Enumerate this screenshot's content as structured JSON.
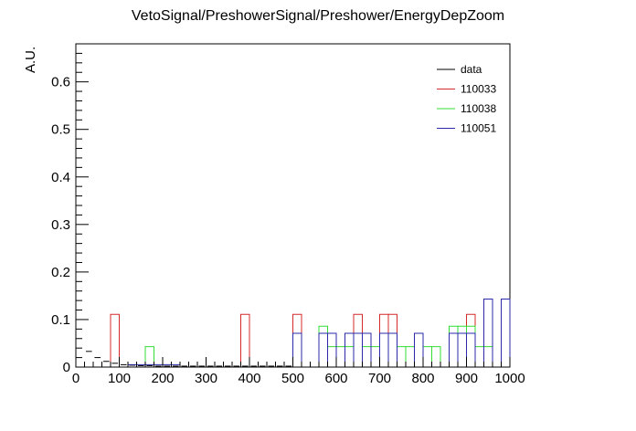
{
  "chart_data": {
    "type": "histogram",
    "title": "VetoSignal/PreshowerSignal/Preshower/EnergyDepZoom",
    "xlabel": "",
    "ylabel": "A.U.",
    "xlim": [
      0,
      1000
    ],
    "ylim": [
      0,
      0.68
    ],
    "x_ticks": [
      0,
      100,
      200,
      300,
      400,
      500,
      600,
      700,
      800,
      900,
      1000
    ],
    "x_tick_labels": [
      "0",
      "100",
      "200",
      "300",
      "400",
      "500",
      "600",
      "700",
      "800",
      "900",
      "1000"
    ],
    "y_ticks": [
      0,
      0.1,
      0.2,
      0.3,
      0.4,
      0.5,
      0.6
    ],
    "y_tick_labels": [
      "0",
      "0.1",
      "0.2",
      "0.3",
      "0.4",
      "0.5",
      "0.6"
    ],
    "grid": false,
    "legend_position": "top-right",
    "bin_width": 20,
    "series": [
      {
        "name": "data",
        "color": "#000000",
        "style": "markers",
        "bins": [
          {
            "x0": 20,
            "x1": 40,
            "y": 0.033
          },
          {
            "x0": 40,
            "x1": 60,
            "y": 0.02
          },
          {
            "x0": 60,
            "x1": 80,
            "y": 0.012
          },
          {
            "x0": 80,
            "x1": 100,
            "y": 0.008
          },
          {
            "x0": 100,
            "x1": 120,
            "y": 0.005
          },
          {
            "x0": 120,
            "x1": 140,
            "y": 0.004
          },
          {
            "x0": 140,
            "x1": 160,
            "y": 0.003
          },
          {
            "x0": 160,
            "x1": 180,
            "y": 0.003
          },
          {
            "x0": 180,
            "x1": 200,
            "y": 0.002
          },
          {
            "x0": 200,
            "x1": 220,
            "y": 0.002
          },
          {
            "x0": 220,
            "x1": 240,
            "y": 0.002
          },
          {
            "x0": 240,
            "x1": 260,
            "y": 0.002
          },
          {
            "x0": 260,
            "x1": 280,
            "y": 0.002
          },
          {
            "x0": 280,
            "x1": 300,
            "y": 0.002
          },
          {
            "x0": 300,
            "x1": 320,
            "y": 0.002
          },
          {
            "x0": 320,
            "x1": 340,
            "y": 0.002
          },
          {
            "x0": 340,
            "x1": 360,
            "y": 0.002
          },
          {
            "x0": 360,
            "x1": 380,
            "y": 0.002
          },
          {
            "x0": 380,
            "x1": 400,
            "y": 0.002
          },
          {
            "x0": 400,
            "x1": 420,
            "y": 0.002
          },
          {
            "x0": 420,
            "x1": 440,
            "y": 0.002
          },
          {
            "x0": 440,
            "x1": 460,
            "y": 0.002
          },
          {
            "x0": 460,
            "x1": 480,
            "y": 0.002
          },
          {
            "x0": 480,
            "x1": 500,
            "y": 0.002
          }
        ]
      },
      {
        "name": "110033",
        "color": "#d42a2a",
        "style": "step",
        "bins": [
          {
            "x0": 80,
            "x1": 100,
            "y": 0.111
          },
          {
            "x0": 380,
            "x1": 400,
            "y": 0.111
          },
          {
            "x0": 500,
            "x1": 520,
            "y": 0.111
          },
          {
            "x0": 640,
            "x1": 660,
            "y": 0.111
          },
          {
            "x0": 700,
            "x1": 720,
            "y": 0.111
          },
          {
            "x0": 720,
            "x1": 740,
            "y": 0.111
          },
          {
            "x0": 900,
            "x1": 920,
            "y": 0.111
          }
        ]
      },
      {
        "name": "110038",
        "color": "#33dd33",
        "style": "step",
        "bins": [
          {
            "x0": 160,
            "x1": 180,
            "y": 0.043
          },
          {
            "x0": 560,
            "x1": 580,
            "y": 0.086
          },
          {
            "x0": 580,
            "x1": 600,
            "y": 0.043
          },
          {
            "x0": 600,
            "x1": 620,
            "y": 0.043
          },
          {
            "x0": 620,
            "x1": 640,
            "y": 0.043
          },
          {
            "x0": 660,
            "x1": 680,
            "y": 0.043
          },
          {
            "x0": 680,
            "x1": 700,
            "y": 0.043
          },
          {
            "x0": 740,
            "x1": 760,
            "y": 0.043
          },
          {
            "x0": 760,
            "x1": 780,
            "y": 0.043
          },
          {
            "x0": 800,
            "x1": 820,
            "y": 0.043
          },
          {
            "x0": 820,
            "x1": 840,
            "y": 0.043
          },
          {
            "x0": 860,
            "x1": 880,
            "y": 0.086
          },
          {
            "x0": 880,
            "x1": 900,
            "y": 0.086
          },
          {
            "x0": 900,
            "x1": 920,
            "y": 0.086
          },
          {
            "x0": 920,
            "x1": 940,
            "y": 0.043
          },
          {
            "x0": 940,
            "x1": 960,
            "y": 0.043
          }
        ]
      },
      {
        "name": "110051",
        "color": "#2a2aaa",
        "style": "step",
        "bins": [
          {
            "x0": 120,
            "x1": 140,
            "y": 0.005
          },
          {
            "x0": 140,
            "x1": 160,
            "y": 0.005
          },
          {
            "x0": 160,
            "x1": 180,
            "y": 0.005
          },
          {
            "x0": 180,
            "x1": 200,
            "y": 0.005
          },
          {
            "x0": 200,
            "x1": 220,
            "y": 0.005
          },
          {
            "x0": 220,
            "x1": 240,
            "y": 0.005
          },
          {
            "x0": 500,
            "x1": 520,
            "y": 0.071
          },
          {
            "x0": 560,
            "x1": 580,
            "y": 0.071
          },
          {
            "x0": 580,
            "x1": 600,
            "y": 0.071
          },
          {
            "x0": 620,
            "x1": 640,
            "y": 0.071
          },
          {
            "x0": 640,
            "x1": 660,
            "y": 0.071
          },
          {
            "x0": 660,
            "x1": 680,
            "y": 0.071
          },
          {
            "x0": 700,
            "x1": 720,
            "y": 0.071
          },
          {
            "x0": 720,
            "x1": 740,
            "y": 0.071
          },
          {
            "x0": 780,
            "x1": 800,
            "y": 0.071
          },
          {
            "x0": 860,
            "x1": 880,
            "y": 0.071
          },
          {
            "x0": 880,
            "x1": 900,
            "y": 0.071
          },
          {
            "x0": 900,
            "x1": 920,
            "y": 0.071
          },
          {
            "x0": 940,
            "x1": 960,
            "y": 0.143
          },
          {
            "x0": 980,
            "x1": 1000,
            "y": 0.143
          }
        ]
      }
    ]
  }
}
